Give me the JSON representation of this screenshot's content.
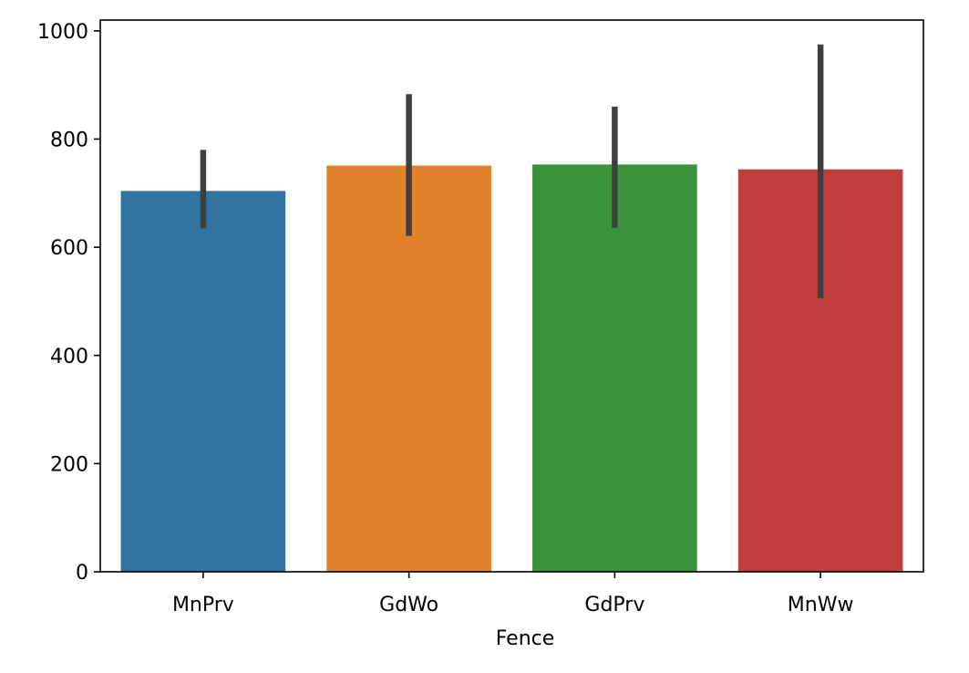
{
  "chart_data": {
    "type": "bar",
    "title": "",
    "xlabel": "Fence",
    "ylabel": "",
    "categories": [
      "MnPrv",
      "GdWo",
      "GdPrv",
      "MnWw"
    ],
    "values": [
      704,
      751,
      753,
      744
    ],
    "error_bars": [
      {
        "low": 635,
        "high": 780
      },
      {
        "low": 621,
        "high": 883
      },
      {
        "low": 636,
        "high": 860
      },
      {
        "low": 506,
        "high": 975
      }
    ],
    "colors": [
      "#3274a1",
      "#e1812c",
      "#3a923a",
      "#c03d3e"
    ],
    "error_bar_color": "#3f3f3f",
    "ylim": [
      0,
      1020
    ],
    "yticks": [
      0,
      200,
      400,
      600,
      800,
      1000
    ],
    "grid": false,
    "legend": false
  }
}
